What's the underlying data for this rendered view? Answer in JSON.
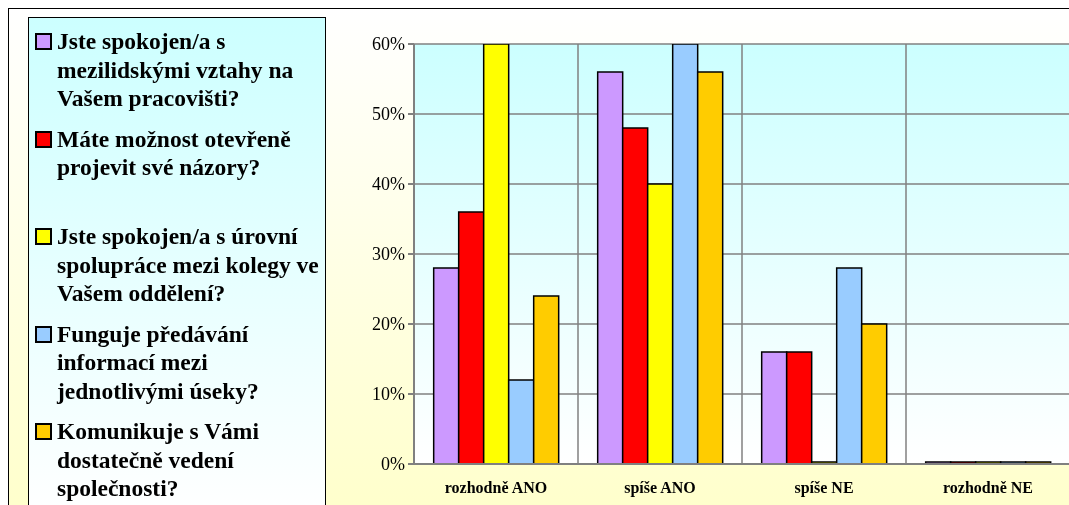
{
  "chart_data": {
    "type": "bar",
    "categories": [
      "rozhodně ANO",
      "spíše ANO",
      "spíše NE",
      "rozhodně NE"
    ],
    "series": [
      {
        "name": "Jste spokojen/a s mezilidskými vztahy na Vašem pracovišti?",
        "color": "#cc99ff",
        "values": [
          28,
          56,
          16,
          0
        ]
      },
      {
        "name": "Máte možnost otevřeně projevit své názory?",
        "color": "#ff0000",
        "values": [
          36,
          48,
          16,
          0
        ]
      },
      {
        "name": "Jste spokojen/a s úrovní spolupráce mezi kolegy ve Vašem oddělení?",
        "color": "#ffff00",
        "values": [
          60,
          40,
          0,
          0
        ]
      },
      {
        "name": "Funguje předávání informací mezi jednotlivými úseky?",
        "color": "#99ccff",
        "values": [
          12,
          60,
          28,
          0
        ]
      },
      {
        "name": "Komunikuje s Vámi dostatečně vedení společnosti?",
        "color": "#ffcc00",
        "values": [
          24,
          56,
          20,
          0
        ]
      }
    ],
    "ylim": [
      0,
      60
    ],
    "yticks": [
      {
        "value": 0,
        "label": "0%"
      },
      {
        "value": 10,
        "label": "10%"
      },
      {
        "value": 20,
        "label": "20%"
      },
      {
        "value": 30,
        "label": "30%"
      },
      {
        "value": 40,
        "label": "40%"
      },
      {
        "value": 50,
        "label": "50%"
      },
      {
        "value": 60,
        "label": "60%"
      }
    ],
    "grid": true,
    "legend": "left"
  }
}
